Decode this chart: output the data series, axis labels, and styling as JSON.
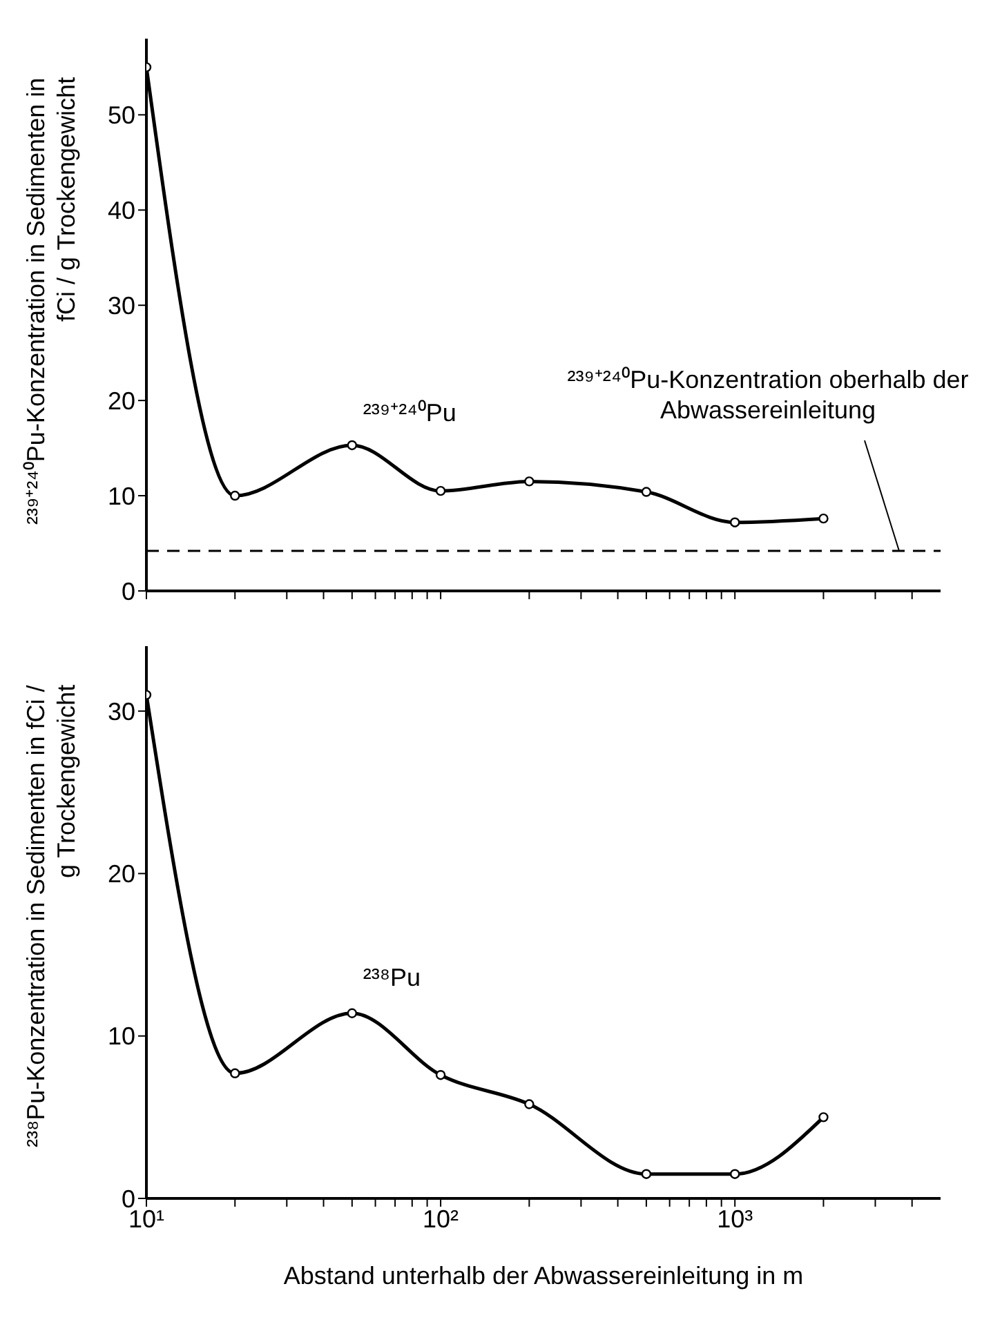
{
  "chart_data": [
    {
      "type": "line",
      "ylabel": "²³⁹⁺²⁴⁰Pu-Konzentration in Sedimenten in fCi / g Trockengewicht",
      "x": [
        10,
        20,
        50,
        100,
        200,
        500,
        1000,
        2000
      ],
      "log": "x",
      "xlim": [
        10,
        5000
      ],
      "xticks": [
        {
          "value": 10,
          "label": null
        },
        {
          "value": 20,
          "label": null
        },
        {
          "value": 30,
          "label": null
        },
        {
          "value": 40,
          "label": null
        },
        {
          "value": 50,
          "label": null
        },
        {
          "value": 60,
          "label": null
        },
        {
          "value": 70,
          "label": null
        },
        {
          "value": 80,
          "label": null
        },
        {
          "value": 90,
          "label": null
        },
        {
          "value": 100,
          "label": null
        },
        {
          "value": 200,
          "label": null
        },
        {
          "value": 300,
          "label": null
        },
        {
          "value": 400,
          "label": null
        },
        {
          "value": 500,
          "label": null
        },
        {
          "value": 600,
          "label": null
        },
        {
          "value": 700,
          "label": null
        },
        {
          "value": 800,
          "label": null
        },
        {
          "value": 900,
          "label": null
        },
        {
          "value": 1000,
          "label": null
        },
        {
          "value": 2000,
          "label": null
        },
        {
          "value": 3000,
          "label": null
        },
        {
          "value": 4000,
          "label": null
        }
      ],
      "ylim": [
        0,
        58
      ],
      "yticks": [
        0,
        10,
        20,
        30,
        40,
        50
      ],
      "tick_labels": "y",
      "marker": "circle",
      "grid": false,
      "series": [
        {
          "name": "²³⁹⁺²⁴⁰Pu",
          "color": "#000000",
          "values": [
            55,
            10,
            15.3,
            10.5,
            11.5,
            10.4,
            7.2,
            7.6
          ]
        }
      ],
      "ref_lines": [
        {
          "axis": "y",
          "value": 4.2,
          "label": "²³⁹⁺²⁴⁰Pu-Konzentration oberhalb der Abwassereinleitung",
          "line_style": "dashed",
          "color": "#000000"
        }
      ]
    },
    {
      "type": "line",
      "ylabel": "²³⁸Pu-Konzentration in Sedimenten in fCi / g Trockengewicht",
      "xlabel": "Abstand unterhalb der Abwassereinleitung in m",
      "x": [
        10,
        20,
        50,
        100,
        200,
        500,
        1000,
        2000
      ],
      "log": "x",
      "xlim": [
        10,
        5000
      ],
      "xticks": [
        {
          "value": 10,
          "label": "10¹"
        },
        {
          "value": 20,
          "label": null
        },
        {
          "value": 30,
          "label": null
        },
        {
          "value": 40,
          "label": null
        },
        {
          "value": 50,
          "label": null
        },
        {
          "value": 60,
          "label": null
        },
        {
          "value": 70,
          "label": null
        },
        {
          "value": 80,
          "label": null
        },
        {
          "value": 90,
          "label": null
        },
        {
          "value": 100,
          "label": "10²"
        },
        {
          "value": 200,
          "label": null
        },
        {
          "value": 300,
          "label": null
        },
        {
          "value": 400,
          "label": null
        },
        {
          "value": 500,
          "label": null
        },
        {
          "value": 600,
          "label": null
        },
        {
          "value": 700,
          "label": null
        },
        {
          "value": 800,
          "label": null
        },
        {
          "value": 900,
          "label": null
        },
        {
          "value": 1000,
          "label": "10³"
        },
        {
          "value": 2000,
          "label": null
        },
        {
          "value": 3000,
          "label": null
        },
        {
          "value": 4000,
          "label": null
        }
      ],
      "ylim": [
        0,
        34
      ],
      "yticks": [
        0,
        10,
        20,
        30
      ],
      "marker": "circle",
      "grid": false,
      "series": [
        {
          "name": "²³⁸Pu",
          "color": "#000000",
          "values": [
            31,
            7.7,
            11.4,
            7.6,
            5.8,
            1.5,
            1.5,
            5.0
          ]
        }
      ]
    }
  ]
}
